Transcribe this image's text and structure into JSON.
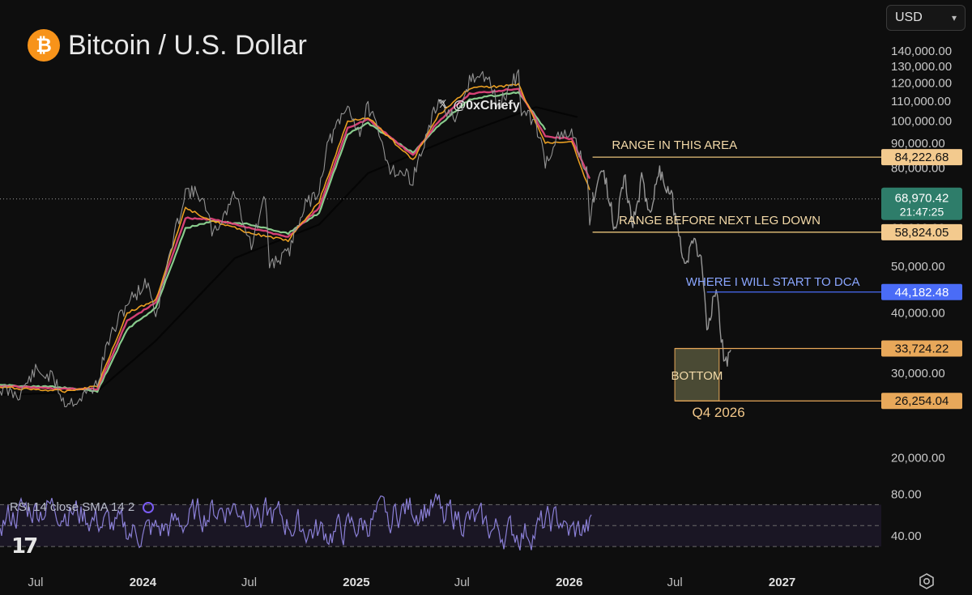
{
  "header": {
    "title": "Bitcoin / U.S. Dollar",
    "logo_icon": "bitcoin-logo",
    "logo_glyph": "₿",
    "currency_select": "USD"
  },
  "watermark": {
    "x_glyph": "𝕏",
    "handle": "@0xChiefy"
  },
  "rsi": {
    "legend": "RSI 14 close SMA 14 2",
    "levels": [
      80,
      40
    ],
    "band": [
      70,
      30
    ],
    "ticks": [
      "80.00",
      "40.00"
    ]
  },
  "colors": {
    "background": "#0e0e0e",
    "price": "#9a9a9a",
    "ema_fast": "#f5a623",
    "ema_mid": "#e0457b",
    "ema_slow": "#8fd694",
    "sma_long": "#000000",
    "projection": "#9e9e9e",
    "level_line": "#e8c27a",
    "dca_line": "#4a6cf7",
    "rsi_line": "#8a7fd6"
  },
  "chart_data": {
    "type": "line",
    "yscale": "log",
    "ylim": [
      17500,
      150000
    ],
    "y_ticks": [
      "140,000.00",
      "130,000.00",
      "120,000.00",
      "110,000.00",
      "100,000.00",
      "90,000.00",
      "80,000.00",
      "70,000.00",
      "60,000.00",
      "50,000.00",
      "40,000.00",
      "30,000.00",
      "20,000.00"
    ],
    "y_tick_values": [
      140000,
      130000,
      120000,
      110000,
      100000,
      90000,
      80000,
      70000,
      60000,
      50000,
      40000,
      30000,
      20000
    ],
    "x_ticks": [
      {
        "label": "Jul",
        "t": "2023-07-01",
        "bold": false
      },
      {
        "label": "2024",
        "t": "2024-01-01",
        "bold": true
      },
      {
        "label": "Jul",
        "t": "2024-07-01",
        "bold": false
      },
      {
        "label": "2025",
        "t": "2025-01-01",
        "bold": true
      },
      {
        "label": "Jul",
        "t": "2025-07-01",
        "bold": false
      },
      {
        "label": "2026",
        "t": "2026-01-01",
        "bold": true
      },
      {
        "label": "Jul",
        "t": "2026-07-01",
        "bold": false
      },
      {
        "label": "2027",
        "t": "2027-01-01",
        "bold": true
      }
    ],
    "xlim": [
      "2023-05-01",
      "2027-06-20"
    ],
    "series": [
      {
        "style": "price",
        "points": [
          [
            "2023-05-01",
            27800
          ],
          [
            "2023-06-01",
            27000
          ],
          [
            "2023-07-01",
            30300
          ],
          [
            "2023-08-01",
            29200
          ],
          [
            "2023-08-20",
            26000
          ],
          [
            "2023-09-15",
            26500
          ],
          [
            "2023-10-15",
            28500
          ],
          [
            "2023-11-01",
            34500
          ],
          [
            "2023-12-05",
            42000
          ],
          [
            "2024-01-10",
            46500
          ],
          [
            "2024-01-23",
            39500
          ],
          [
            "2024-02-15",
            52000
          ],
          [
            "2024-03-14",
            72000
          ],
          [
            "2024-04-10",
            70000
          ],
          [
            "2024-05-01",
            58000
          ],
          [
            "2024-06-07",
            71000
          ],
          [
            "2024-07-05",
            55000
          ],
          [
            "2024-07-29",
            69500
          ],
          [
            "2024-08-05",
            50500
          ],
          [
            "2024-09-06",
            53000
          ],
          [
            "2024-09-30",
            65500
          ],
          [
            "2024-10-29",
            72000
          ],
          [
            "2024-11-12",
            89000
          ],
          [
            "2024-12-17",
            107000
          ],
          [
            "2025-01-07",
            95000
          ],
          [
            "2025-01-21",
            108000
          ],
          [
            "2025-02-28",
            80000
          ],
          [
            "2025-04-08",
            76000
          ],
          [
            "2025-05-22",
            111000
          ],
          [
            "2025-06-22",
            99000
          ],
          [
            "2025-07-14",
            122000
          ],
          [
            "2025-08-14",
            124000
          ],
          [
            "2025-09-01",
            107000
          ],
          [
            "2025-10-06",
            126000
          ],
          [
            "2025-10-11",
            105000
          ],
          [
            "2025-11-05",
            99000
          ],
          [
            "2025-11-21",
            82000
          ],
          [
            "2025-12-10",
            92000
          ],
          [
            "2026-01-05",
            94000
          ],
          [
            "2026-01-15",
            89000
          ],
          [
            "2026-01-31",
            78000
          ],
          [
            "2026-02-05",
            62000
          ],
          [
            "2026-02-10",
            69000
          ]
        ]
      },
      {
        "style": "projection",
        "points": [
          [
            "2026-02-10",
            69000
          ],
          [
            "2026-02-25",
            80000
          ],
          [
            "2026-03-10",
            70000
          ],
          [
            "2026-03-20",
            59500
          ],
          [
            "2026-04-05",
            77000
          ],
          [
            "2026-04-20",
            61000
          ],
          [
            "2026-05-05",
            75000
          ],
          [
            "2026-05-20",
            65000
          ],
          [
            "2026-06-05",
            79000
          ],
          [
            "2026-06-25",
            70000
          ],
          [
            "2026-07-08",
            60000
          ],
          [
            "2026-07-18",
            49000
          ],
          [
            "2026-08-01",
            57000
          ],
          [
            "2026-08-15",
            52000
          ],
          [
            "2026-08-25",
            38000
          ],
          [
            "2026-09-10",
            44000
          ],
          [
            "2026-09-25",
            31000
          ],
          [
            "2026-10-05",
            33500
          ]
        ]
      },
      {
        "style": "ema_fast",
        "points": [
          [
            "2023-05-01",
            28000
          ],
          [
            "2023-08-20",
            27500
          ],
          [
            "2023-10-15",
            28200
          ],
          [
            "2023-12-05",
            40000
          ],
          [
            "2024-01-23",
            42500
          ],
          [
            "2024-03-14",
            66000
          ],
          [
            "2024-05-01",
            62000
          ],
          [
            "2024-07-05",
            58500
          ],
          [
            "2024-09-06",
            56500
          ],
          [
            "2024-10-29",
            68000
          ],
          [
            "2024-12-17",
            100000
          ],
          [
            "2025-01-21",
            102000
          ],
          [
            "2025-04-08",
            83000
          ],
          [
            "2025-05-22",
            103000
          ],
          [
            "2025-07-14",
            117000
          ],
          [
            "2025-10-06",
            119000
          ],
          [
            "2025-11-21",
            90000
          ],
          [
            "2026-01-05",
            91000
          ],
          [
            "2026-02-05",
            72000
          ]
        ]
      },
      {
        "style": "ema_mid",
        "points": [
          [
            "2023-05-01",
            28200
          ],
          [
            "2023-08-20",
            27800
          ],
          [
            "2023-10-15",
            27800
          ],
          [
            "2023-12-05",
            38500
          ],
          [
            "2024-01-23",
            42000
          ],
          [
            "2024-03-14",
            63000
          ],
          [
            "2024-05-01",
            62500
          ],
          [
            "2024-07-05",
            60000
          ],
          [
            "2024-09-06",
            57500
          ],
          [
            "2024-10-29",
            66000
          ],
          [
            "2024-12-17",
            97000
          ],
          [
            "2025-01-21",
            101000
          ],
          [
            "2025-04-08",
            85000
          ],
          [
            "2025-05-22",
            100000
          ],
          [
            "2025-07-14",
            114000
          ],
          [
            "2025-10-06",
            117000
          ],
          [
            "2025-11-21",
            93000
          ],
          [
            "2026-01-05",
            92000
          ],
          [
            "2026-02-05",
            76000
          ]
        ]
      },
      {
        "style": "ema_slow",
        "points": [
          [
            "2023-05-01",
            28300
          ],
          [
            "2023-08-20",
            28000
          ],
          [
            "2023-10-15",
            27500
          ],
          [
            "2023-12-05",
            37000
          ],
          [
            "2024-01-23",
            41000
          ],
          [
            "2024-03-14",
            60000
          ],
          [
            "2024-05-01",
            62000
          ],
          [
            "2024-07-05",
            61000
          ],
          [
            "2024-09-06",
            58500
          ],
          [
            "2024-10-29",
            64500
          ],
          [
            "2024-12-17",
            94000
          ],
          [
            "2025-01-21",
            99000
          ],
          [
            "2025-04-08",
            86000
          ],
          [
            "2025-05-22",
            98000
          ],
          [
            "2025-07-14",
            111000
          ],
          [
            "2025-10-06",
            115000
          ],
          [
            "2025-11-21",
            96000
          ]
        ]
      },
      {
        "style": "sma_long",
        "points": [
          [
            "2023-05-01",
            27000
          ],
          [
            "2023-10-15",
            27500
          ],
          [
            "2024-01-23",
            35000
          ],
          [
            "2024-06-07",
            52000
          ],
          [
            "2024-10-29",
            61000
          ],
          [
            "2025-01-21",
            78000
          ],
          [
            "2025-06-22",
            93000
          ],
          [
            "2025-11-05",
            107000
          ],
          [
            "2026-01-15",
            102000
          ]
        ]
      }
    ],
    "current": {
      "value": "68,970.42",
      "countdown": "21:47:25",
      "y": 68970.42,
      "color": "#2e7d6a"
    },
    "levels": [
      {
        "value": 84222.68,
        "label": "84,222.68",
        "from": "2026-02-10",
        "text": "RANGE IN THIS AREA",
        "text_at": "2026-03-15",
        "text_dy": -10,
        "line": "#e8c27a",
        "tag_bg": "#f3ca8e",
        "tag_fg": "#111111",
        "text_color": "#f3d9a8"
      },
      {
        "value": 58824.05,
        "label": "58,824.05",
        "from": "2026-02-10",
        "text": "RANGE BEFORE NEXT LEG DOWN",
        "text_at": "2026-03-27",
        "text_dy": -10,
        "line": "#e8c27a",
        "tag_bg": "#f3ca8e",
        "tag_fg": "#111111",
        "text_color": "#f3d9a8"
      },
      {
        "value": 44182.48,
        "label": "44,182.48",
        "from": "2026-08-25",
        "text": "WHERE I WILL START TO DCA",
        "text_at": "2026-07-20",
        "text_dy": -8,
        "line": "#4a6cf7",
        "tag_bg": "#4a6cf7",
        "tag_fg": "#ffffff",
        "text_color": "#8aa6ff"
      },
      {
        "value": 33724.22,
        "label": "33,724.22",
        "from": "2026-07-01",
        "text": "",
        "line": "#e8a85a",
        "tag_bg": "#e8a85a",
        "tag_fg": "#111111"
      },
      {
        "value": 26254.04,
        "label": "26,254.04",
        "from": "2026-07-01",
        "text": "",
        "line": "#e8a85a",
        "tag_bg": "#e8a85a",
        "tag_fg": "#111111"
      }
    ],
    "bottom_box": {
      "label": "BOTTOM",
      "sublabel": "Q4 2026",
      "x0": "2026-07-01",
      "x1": "2026-09-15",
      "y0": 33724.22,
      "y1": 26254.04
    }
  }
}
